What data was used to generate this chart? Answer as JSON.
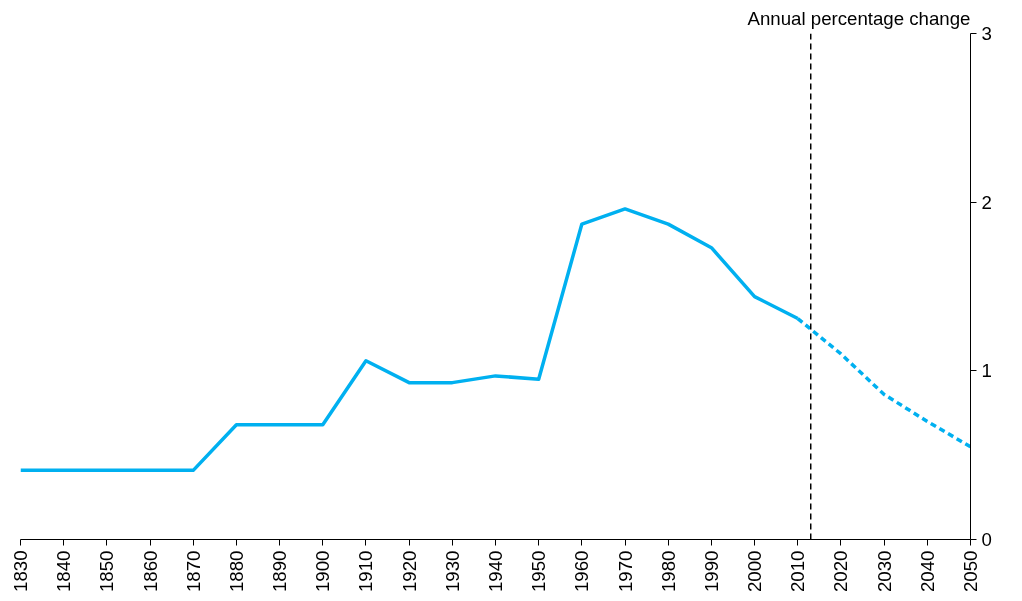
{
  "chart_data": {
    "type": "line",
    "ylabel": "Annual percentage change",
    "xlim": [
      1830,
      2050
    ],
    "xticks": [
      1830,
      1840,
      1850,
      1860,
      1870,
      1880,
      1890,
      1900,
      1910,
      1920,
      1930,
      1940,
      1950,
      1960,
      1970,
      1980,
      1990,
      2000,
      2010,
      2020,
      2030,
      2040,
      2050
    ],
    "ylim": [
      0,
      3
    ],
    "yticks": [
      0,
      1,
      2,
      3
    ],
    "grid": false,
    "marker": "none",
    "series": [
      {
        "color": "#00b0f0",
        "line_style": "solid",
        "x": [
          1830,
          1840,
          1850,
          1860,
          1870,
          1880,
          1890,
          1900,
          1910,
          1920,
          1930,
          1940,
          1950,
          1960,
          1970,
          1980,
          1990,
          2000,
          2010
        ],
        "values": [
          0.41,
          0.41,
          0.41,
          0.41,
          0.41,
          0.68,
          0.68,
          0.68,
          1.06,
          0.93,
          0.93,
          0.97,
          0.95,
          1.87,
          1.96,
          1.87,
          1.73,
          1.44,
          1.31
        ]
      },
      {
        "color": "#00b0f0",
        "line_style": "dashed",
        "x": [
          2010,
          2020,
          2030,
          2040,
          2050
        ],
        "values": [
          1.31,
          1.1,
          0.86,
          0.7,
          0.55
        ]
      }
    ],
    "ref_lines": [
      {
        "axis": "x",
        "value": 2013,
        "color": "#000000",
        "line_style": "dashed"
      }
    ]
  }
}
